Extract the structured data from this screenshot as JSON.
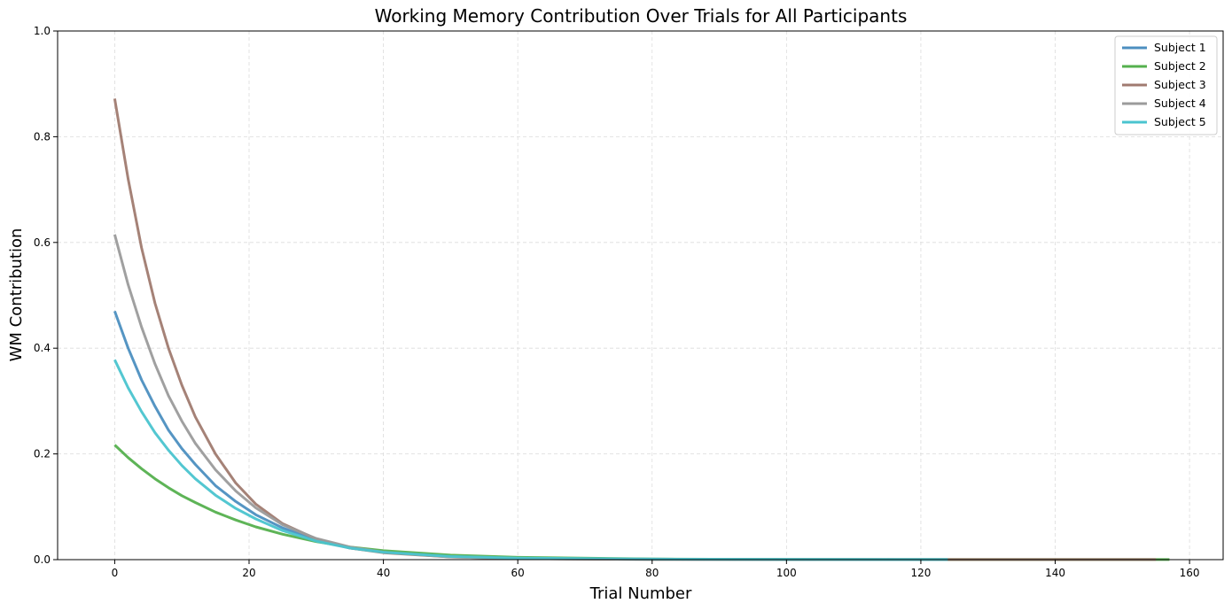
{
  "chart_data": {
    "type": "line",
    "title": "Working Memory Contribution Over Trials for All Participants",
    "xlabel": "Trial Number",
    "ylabel": "WM Contribution",
    "xlim": [
      -8.5,
      165
    ],
    "ylim": [
      0,
      1.0
    ],
    "xticks": [
      0,
      20,
      40,
      60,
      80,
      100,
      120,
      140,
      160
    ],
    "yticks": [
      0.0,
      0.2,
      0.4,
      0.6,
      0.8,
      1.0
    ],
    "grid": true,
    "legend_position": "top-right",
    "series": [
      {
        "name": "Subject 1",
        "color": "#4c8fc0",
        "x": [
          0,
          2,
          4,
          6,
          8,
          10,
          12,
          15,
          18,
          21,
          25,
          30,
          35,
          40,
          50,
          60,
          80,
          100,
          124
        ],
        "y": [
          0.47,
          0.4,
          0.34,
          0.29,
          0.245,
          0.21,
          0.18,
          0.14,
          0.11,
          0.085,
          0.06,
          0.037,
          0.022,
          0.014,
          0.006,
          0.003,
          0.001,
          0.0005,
          0.0002
        ]
      },
      {
        "name": "Subject 2",
        "color": "#55b04e",
        "x": [
          0,
          2,
          4,
          6,
          8,
          10,
          12,
          15,
          18,
          21,
          25,
          30,
          35,
          40,
          50,
          60,
          80,
          100,
          120,
          140,
          157
        ],
        "y": [
          0.217,
          0.193,
          0.172,
          0.153,
          0.136,
          0.121,
          0.108,
          0.09,
          0.075,
          0.062,
          0.048,
          0.034,
          0.024,
          0.017,
          0.0085,
          0.0043,
          0.0012,
          0.0004,
          0.0002,
          0.0001,
          0.0001
        ]
      },
      {
        "name": "Subject 3",
        "color": "#a07b70",
        "x": [
          0,
          2,
          4,
          6,
          8,
          10,
          12,
          15,
          18,
          21,
          25,
          30,
          35,
          40,
          50,
          60,
          80,
          100,
          120,
          140,
          155
        ],
        "y": [
          0.872,
          0.72,
          0.59,
          0.485,
          0.4,
          0.33,
          0.27,
          0.2,
          0.145,
          0.105,
          0.068,
          0.039,
          0.022,
          0.013,
          0.005,
          0.002,
          0.0005,
          0.0002,
          0.0001,
          0.0001,
          0.0001
        ]
      },
      {
        "name": "Subject 4",
        "color": "#9b9b9b",
        "x": [
          0,
          2,
          4,
          6,
          8,
          10,
          12,
          15,
          18,
          21,
          25,
          30,
          35,
          40,
          50,
          60,
          80,
          100,
          124
        ],
        "y": [
          0.615,
          0.52,
          0.44,
          0.37,
          0.31,
          0.262,
          0.22,
          0.17,
          0.13,
          0.098,
          0.066,
          0.04,
          0.024,
          0.014,
          0.005,
          0.002,
          0.0005,
          0.0002,
          0.0001
        ]
      },
      {
        "name": "Subject 5",
        "color": "#4ac4cf",
        "x": [
          0,
          2,
          4,
          6,
          8,
          10,
          12,
          15,
          18,
          21,
          25,
          30,
          35,
          40,
          50,
          60,
          80,
          100,
          124
        ],
        "y": [
          0.378,
          0.325,
          0.28,
          0.24,
          0.207,
          0.178,
          0.153,
          0.122,
          0.097,
          0.077,
          0.055,
          0.035,
          0.022,
          0.014,
          0.006,
          0.003,
          0.001,
          0.0005,
          0.0002
        ]
      }
    ]
  }
}
